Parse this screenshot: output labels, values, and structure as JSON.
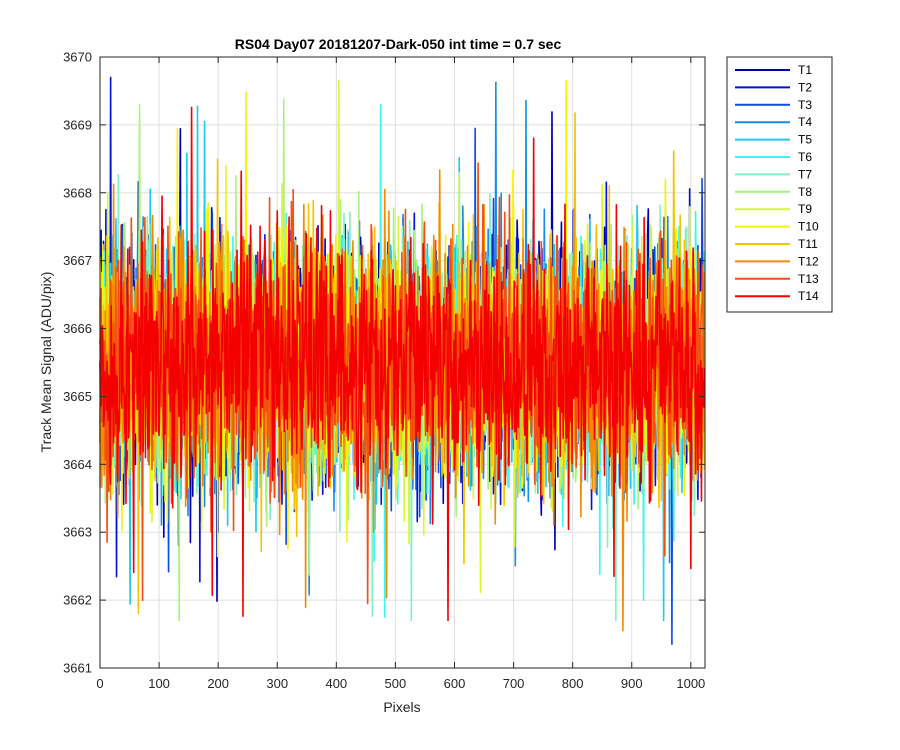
{
  "chart_data": {
    "type": "line",
    "title": "RS04 Day07 20181207-Dark-050 int time = 0.7 sec",
    "xlabel": "Pixels",
    "ylabel": "Track Mean Signal (ADU/pix)",
    "xlim": [
      0,
      1024
    ],
    "ylim": [
      3661,
      3670
    ],
    "xticks": [
      0,
      100,
      200,
      300,
      400,
      500,
      600,
      700,
      800,
      900,
      1000
    ],
    "yticks": [
      3661,
      3662,
      3663,
      3664,
      3665,
      3666,
      3667,
      3668,
      3669,
      3670
    ],
    "grid": true,
    "legend_position": "outside-top-right",
    "num_points": 1024,
    "mean_level": 3665.5,
    "typical_range": [
      3663.2,
      3667.8
    ],
    "series": [
      {
        "name": "T1",
        "color": "#0000b3"
      },
      {
        "name": "T2",
        "color": "#0014d9"
      },
      {
        "name": "T3",
        "color": "#0a4ce6"
      },
      {
        "name": "T4",
        "color": "#1a8ce8"
      },
      {
        "name": "T5",
        "color": "#1ec8f0"
      },
      {
        "name": "T6",
        "color": "#3ff5f0"
      },
      {
        "name": "T7",
        "color": "#7ff2c8"
      },
      {
        "name": "T8",
        "color": "#a6f57a"
      },
      {
        "name": "T9",
        "color": "#d9f53a"
      },
      {
        "name": "T10",
        "color": "#f5f500"
      },
      {
        "name": "T11",
        "color": "#f5c400"
      },
      {
        "name": "T12",
        "color": "#f58a00"
      },
      {
        "name": "T13",
        "color": "#f54e10"
      },
      {
        "name": "T14",
        "color": "#f50000"
      }
    ],
    "notable_extremes": [
      {
        "series": "T2",
        "x": 18,
        "y": 3669.7
      },
      {
        "series": "T6",
        "x": 475,
        "y": 3669.3
      },
      {
        "series": "T3",
        "x": 635,
        "y": 3668.95
      },
      {
        "series": "T13",
        "x": 453,
        "y": 3661.95
      },
      {
        "series": "T12",
        "x": 885,
        "y": 3661.55
      },
      {
        "series": "T3",
        "x": 968,
        "y": 3661.35
      },
      {
        "series": "T6",
        "x": 920,
        "y": 3662.0
      }
    ]
  }
}
